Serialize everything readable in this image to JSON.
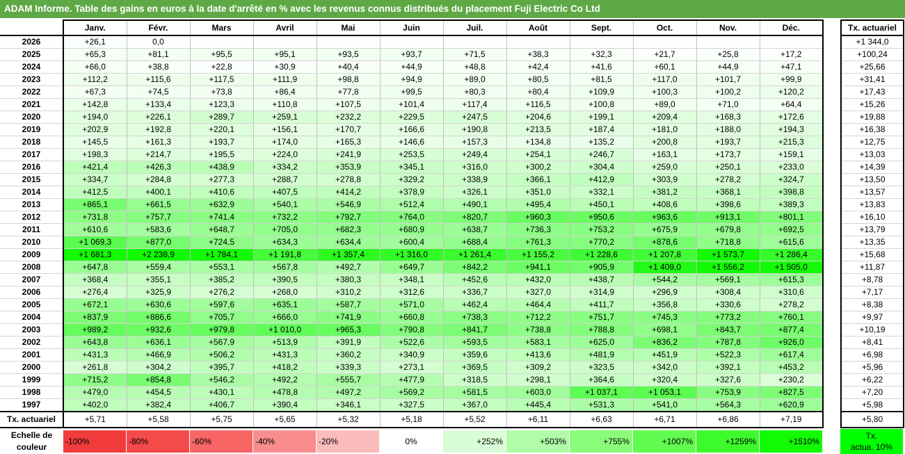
{
  "title": "ADAM Informe. Table des gains en euros à la date d'arrêté en % avec les revenus connus distribués du placement Fuji Electric Co Ltd",
  "months": [
    "Janv.",
    "Févr.",
    "Mars",
    "Avril",
    "Mai",
    "Juin",
    "Juil.",
    "Août",
    "Sept.",
    "Oct.",
    "Nov.",
    "Déc."
  ],
  "side_header": "Tx. actuariel",
  "rows": [
    {
      "year": "2026",
      "values": [
        "+26,1",
        "0,0",
        "",
        "",
        "",
        "",
        "",
        "",
        "",
        "",
        "",
        ""
      ],
      "tx": "+1 344,0"
    },
    {
      "year": "2025",
      "values": [
        "+65,3",
        "+81,1",
        "+95,5",
        "+95,1",
        "+93,5",
        "+93,7",
        "+71,5",
        "+38,3",
        "+32,3",
        "+21,7",
        "+25,8",
        "+17,2"
      ],
      "tx": "+100,24"
    },
    {
      "year": "2024",
      "values": [
        "+66,0",
        "+38,8",
        "+22,8",
        "+30,9",
        "+40,4",
        "+44,9",
        "+48,8",
        "+42,4",
        "+41,6",
        "+60,1",
        "+44,9",
        "+47,1"
      ],
      "tx": "+25,66"
    },
    {
      "year": "2023",
      "values": [
        "+112,2",
        "+115,6",
        "+117,5",
        "+111,9",
        "+98,8",
        "+94,9",
        "+89,0",
        "+80,5",
        "+81,5",
        "+117,0",
        "+101,7",
        "+99,9"
      ],
      "tx": "+31,41"
    },
    {
      "year": "2022",
      "values": [
        "+67,3",
        "+74,5",
        "+73,8",
        "+86,4",
        "+77,8",
        "+99,5",
        "+80,3",
        "+80,4",
        "+109,9",
        "+100,3",
        "+100,2",
        "+120,2"
      ],
      "tx": "+17,43"
    },
    {
      "year": "2021",
      "values": [
        "+142,8",
        "+133,4",
        "+123,3",
        "+110,8",
        "+107,5",
        "+101,4",
        "+117,4",
        "+116,5",
        "+100,8",
        "+89,0",
        "+71,0",
        "+64,4"
      ],
      "tx": "+15,26"
    },
    {
      "year": "2020",
      "values": [
        "+194,0",
        "+226,1",
        "+289,7",
        "+259,1",
        "+232,2",
        "+229,5",
        "+247,5",
        "+204,6",
        "+199,1",
        "+209,4",
        "+168,3",
        "+172,6"
      ],
      "tx": "+19,88"
    },
    {
      "year": "2019",
      "values": [
        "+202,9",
        "+192,8",
        "+220,1",
        "+156,1",
        "+170,7",
        "+166,6",
        "+190,8",
        "+213,5",
        "+187,4",
        "+181,0",
        "+188,0",
        "+194,3"
      ],
      "tx": "+16,38"
    },
    {
      "year": "2018",
      "values": [
        "+145,5",
        "+161,3",
        "+193,7",
        "+174,0",
        "+165,3",
        "+146,6",
        "+157,3",
        "+134,8",
        "+135,2",
        "+200,8",
        "+193,7",
        "+215,3"
      ],
      "tx": "+12,75"
    },
    {
      "year": "2017",
      "values": [
        "+198,3",
        "+214,7",
        "+195,5",
        "+224,0",
        "+241,9",
        "+253,5",
        "+249,4",
        "+254,1",
        "+246,7",
        "+163,1",
        "+173,7",
        "+159,1"
      ],
      "tx": "+13,03"
    },
    {
      "year": "2016",
      "values": [
        "+421,4",
        "+426,3",
        "+438,9",
        "+334,2",
        "+353,9",
        "+345,1",
        "+316,0",
        "+300,2",
        "+304,4",
        "+259,0",
        "+250,1",
        "+233,0"
      ],
      "tx": "+14,39"
    },
    {
      "year": "2015",
      "values": [
        "+334,7",
        "+284,8",
        "+277,3",
        "+288,7",
        "+278,8",
        "+329,2",
        "+338,9",
        "+366,1",
        "+412,9",
        "+303,9",
        "+278,2",
        "+324,7"
      ],
      "tx": "+13,50"
    },
    {
      "year": "2014",
      "values": [
        "+412,5",
        "+400,1",
        "+410,6",
        "+407,5",
        "+414,2",
        "+378,9",
        "+326,1",
        "+351,0",
        "+332,1",
        "+381,2",
        "+368,1",
        "+398,8"
      ],
      "tx": "+13,57"
    },
    {
      "year": "2013",
      "values": [
        "+865,1",
        "+661,5",
        "+632,9",
        "+540,1",
        "+546,9",
        "+512,4",
        "+490,1",
        "+495,4",
        "+450,1",
        "+408,6",
        "+398,6",
        "+389,3"
      ],
      "tx": "+13,83"
    },
    {
      "year": "2012",
      "values": [
        "+731,8",
        "+757,7",
        "+741,4",
        "+732,2",
        "+792,7",
        "+764,0",
        "+820,7",
        "+960,3",
        "+950,6",
        "+963,6",
        "+913,1",
        "+801,1"
      ],
      "tx": "+16,10"
    },
    {
      "year": "2011",
      "values": [
        "+610,6",
        "+583,6",
        "+648,7",
        "+705,0",
        "+682,3",
        "+680,9",
        "+638,7",
        "+736,3",
        "+753,2",
        "+675,9",
        "+679,8",
        "+692,5"
      ],
      "tx": "+13,79"
    },
    {
      "year": "2010",
      "values": [
        "+1 069,3",
        "+877,0",
        "+724,5",
        "+634,3",
        "+634,4",
        "+600,4",
        "+688,4",
        "+761,3",
        "+770,2",
        "+878,6",
        "+718,8",
        "+615,6"
      ],
      "tx": "+13,35"
    },
    {
      "year": "2009",
      "values": [
        "+1 681,3",
        "+2 238,9",
        "+1 784,1",
        "+1 191,8",
        "+1 357,4",
        "+1 316,0",
        "+1 261,4",
        "+1 155,2",
        "+1 228,6",
        "+1 207,8",
        "+1 573,7",
        "+1 286,4"
      ],
      "tx": "+15,68"
    },
    {
      "year": "2008",
      "values": [
        "+647,8",
        "+559,4",
        "+553,1",
        "+567,8",
        "+492,7",
        "+649,7",
        "+842,2",
        "+941,1",
        "+905,9",
        "+1 409,0",
        "+1 556,2",
        "+1 505,0"
      ],
      "tx": "+11,87"
    },
    {
      "year": "2007",
      "values": [
        "+368,4",
        "+355,1",
        "+385,2",
        "+390,5",
        "+380,3",
        "+348,1",
        "+452,6",
        "+432,0",
        "+438,7",
        "+544,2",
        "+569,1",
        "+615,3"
      ],
      "tx": "+8,78"
    },
    {
      "year": "2006",
      "values": [
        "+276,4",
        "+325,9",
        "+276,2",
        "+268,0",
        "+310,2",
        "+312,6",
        "+336,7",
        "+327,0",
        "+314,9",
        "+296,9",
        "+308,4",
        "+310,6"
      ],
      "tx": "+7,17"
    },
    {
      "year": "2005",
      "values": [
        "+672,1",
        "+630,6",
        "+597,6",
        "+635,1",
        "+587,7",
        "+571,0",
        "+462,4",
        "+464,4",
        "+411,7",
        "+356,8",
        "+330,6",
        "+278,2"
      ],
      "tx": "+8,38"
    },
    {
      "year": "2004",
      "values": [
        "+837,9",
        "+886,6",
        "+705,7",
        "+666,0",
        "+741,9",
        "+660,8",
        "+738,3",
        "+712,2",
        "+751,7",
        "+745,3",
        "+773,2",
        "+760,1"
      ],
      "tx": "+9,97"
    },
    {
      "year": "2003",
      "values": [
        "+989,2",
        "+932,6",
        "+979,8",
        "+1 010,0",
        "+965,3",
        "+790,8",
        "+841,7",
        "+738,8",
        "+788,8",
        "+698,1",
        "+843,7",
        "+877,4"
      ],
      "tx": "+10,19"
    },
    {
      "year": "2002",
      "values": [
        "+643,8",
        "+636,1",
        "+567,9",
        "+513,9",
        "+391,9",
        "+522,6",
        "+593,5",
        "+583,1",
        "+625,0",
        "+836,2",
        "+787,8",
        "+926,0"
      ],
      "tx": "+8,41"
    },
    {
      "year": "2001",
      "values": [
        "+431,3",
        "+466,9",
        "+506,2",
        "+431,3",
        "+360,2",
        "+340,9",
        "+359,6",
        "+413,6",
        "+481,9",
        "+451,9",
        "+522,3",
        "+617,4"
      ],
      "tx": "+6,98"
    },
    {
      "year": "2000",
      "values": [
        "+261,8",
        "+304,2",
        "+395,7",
        "+418,2",
        "+339,3",
        "+273,1",
        "+369,5",
        "+309,2",
        "+323,5",
        "+342,0",
        "+392,1",
        "+453,2"
      ],
      "tx": "+5,96"
    },
    {
      "year": "1999",
      "values": [
        "+715,2",
        "+854,8",
        "+546,2",
        "+492,2",
        "+555,7",
        "+477,9",
        "+318,5",
        "+298,1",
        "+364,6",
        "+320,4",
        "+327,6",
        "+230,2"
      ],
      "tx": "+6,22"
    },
    {
      "year": "1998",
      "values": [
        "+479,0",
        "+454,5",
        "+430,1",
        "+478,8",
        "+497,2",
        "+569,2",
        "+581,5",
        "+603,0",
        "+1 037,1",
        "+1 053,1",
        "+753,9",
        "+827,5"
      ],
      "tx": "+7,20"
    },
    {
      "year": "1997",
      "values": [
        "+402,0",
        "+382,4",
        "+406,7",
        "+390,4",
        "+346,1",
        "+327,5",
        "+367,0",
        "+445,4",
        "+531,3",
        "+541,0",
        "+564,3",
        "+620,9"
      ],
      "tx": "+5,98"
    }
  ],
  "footer": {
    "label": "Tx. actuariel",
    "values": [
      "+5,71",
      "+5,58",
      "+5,75",
      "+5,65",
      "+5,32",
      "+5,18",
      "+5,52",
      "+6,11",
      "+6,63",
      "+6,71",
      "+6,86",
      "+7,19"
    ],
    "tx": "+5,80"
  },
  "scale": {
    "label_line1": "Echelle de",
    "label_line2": "couleur",
    "items": [
      {
        "text": "-100%",
        "color": "#f23c3c",
        "kind": "neg"
      },
      {
        "text": "-80%",
        "color": "#f54a4a",
        "kind": "neg"
      },
      {
        "text": "-60%",
        "color": "#f76565",
        "kind": "neg"
      },
      {
        "text": "-40%",
        "color": "#f98d8d",
        "kind": "neg"
      },
      {
        "text": "-20%",
        "color": "#fcbcbc",
        "kind": "neg"
      },
      {
        "text": "0%",
        "color": "#ffffff",
        "kind": "zero"
      },
      {
        "text": "+252%",
        "color": "#d9fdd6",
        "kind": "pos"
      },
      {
        "text": "+503%",
        "color": "#b1fca8",
        "kind": "pos"
      },
      {
        "text": "+755%",
        "color": "#8afc7c",
        "kind": "pos"
      },
      {
        "text": "+1007%",
        "color": "#62fb50",
        "kind": "pos"
      },
      {
        "text": "+1259%",
        "color": "#3dfb2a",
        "kind": "pos"
      },
      {
        "text": "+1510%",
        "color": "#13fa05",
        "kind": "pos"
      }
    ],
    "legend_line1": "Tx.",
    "legend_line2": "actua. 10%",
    "legend_color": "#00ff00"
  },
  "colors": {
    "title_bg": "#5fa846",
    "scale_max_pct": 1510
  }
}
